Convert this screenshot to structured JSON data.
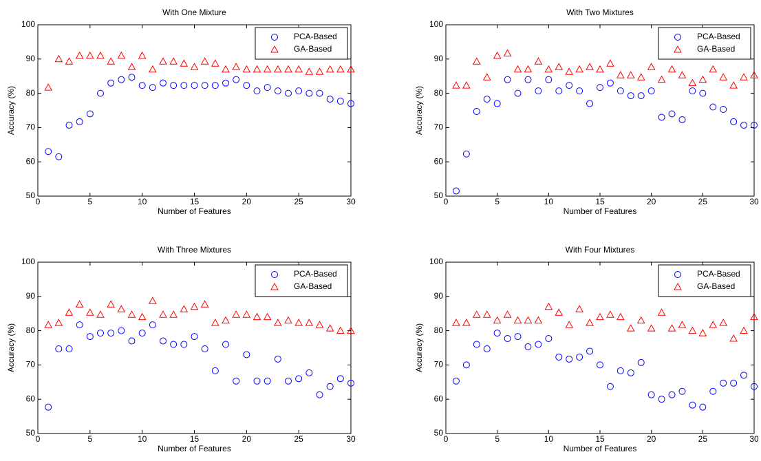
{
  "chart_data": [
    {
      "type": "scatter",
      "title": "With One Mixture",
      "xlabel": "Number of Features",
      "ylabel": "Accuracy (%)",
      "x": [
        1,
        2,
        3,
        4,
        5,
        6,
        7,
        8,
        9,
        10,
        11,
        12,
        13,
        14,
        15,
        16,
        17,
        18,
        19,
        20,
        21,
        22,
        23,
        24,
        25,
        26,
        27,
        28,
        29,
        30
      ],
      "series": [
        {
          "name": "PCA-Based",
          "color": "#0000ff",
          "marker": "o",
          "values": [
            63,
            61.5,
            70.7,
            71.7,
            74,
            80,
            83,
            84,
            84.7,
            82.3,
            81.7,
            83,
            82.3,
            82.3,
            82.3,
            82.3,
            82.3,
            83,
            84,
            82.3,
            80.7,
            81.7,
            80.7,
            80,
            80.7,
            80,
            80,
            78.3,
            77.7,
            77
          ]
        },
        {
          "name": "GA-Based",
          "color": "#ff0000",
          "marker": "^",
          "values": [
            81.7,
            90,
            89.3,
            91,
            91,
            91,
            89.3,
            91,
            87.7,
            91,
            87,
            89.3,
            89.3,
            88.7,
            87.7,
            89.3,
            88.7,
            87,
            87.7,
            87,
            87,
            87,
            87,
            87,
            87,
            86.3,
            86.3,
            87,
            87,
            87
          ]
        }
      ],
      "xlim": [
        0,
        30
      ],
      "ylim": [
        50,
        100
      ],
      "xticks": [
        0,
        5,
        10,
        15,
        20,
        25,
        30
      ],
      "yticks": [
        50,
        60,
        70,
        80,
        90,
        100
      ],
      "legend": "upper right"
    },
    {
      "type": "scatter",
      "title": "With Two Mixtures",
      "xlabel": "Number of Features",
      "ylabel": "Accuracy (%)",
      "x": [
        1,
        2,
        3,
        4,
        5,
        6,
        7,
        8,
        9,
        10,
        11,
        12,
        13,
        14,
        15,
        16,
        17,
        18,
        19,
        20,
        21,
        22,
        23,
        24,
        25,
        26,
        27,
        28,
        29,
        30
      ],
      "series": [
        {
          "name": "PCA-Based",
          "color": "#0000ff",
          "marker": "o",
          "values": [
            51.5,
            62.3,
            74.7,
            78.3,
            77,
            84,
            80,
            84,
            80.7,
            84,
            80.7,
            82.3,
            80.7,
            77,
            81.7,
            83,
            80.7,
            79.3,
            79.3,
            80.7,
            73,
            74,
            72.3,
            80.7,
            80,
            76,
            75.3,
            71.7,
            70.7,
            70.7
          ]
        },
        {
          "name": "GA-Based",
          "color": "#ff0000",
          "marker": "^",
          "values": [
            82.3,
            82.3,
            89.3,
            84.7,
            91,
            91.7,
            87,
            87,
            89.3,
            87,
            87.7,
            86.3,
            87,
            87.7,
            87,
            88.7,
            85.3,
            85.3,
            84.7,
            87.7,
            84,
            87,
            85.3,
            83,
            84,
            87,
            84.7,
            82.3,
            84.7,
            85.3
          ]
        }
      ],
      "xlim": [
        0,
        30
      ],
      "ylim": [
        50,
        100
      ],
      "xticks": [
        0,
        5,
        10,
        15,
        20,
        25,
        30
      ],
      "yticks": [
        50,
        60,
        70,
        80,
        90,
        100
      ],
      "legend": "upper right"
    },
    {
      "type": "scatter",
      "title": "With Three Mixtures",
      "xlabel": "Number of Features",
      "ylabel": "Accuracy (%)",
      "x": [
        1,
        2,
        3,
        4,
        5,
        6,
        7,
        8,
        9,
        10,
        11,
        12,
        13,
        14,
        15,
        16,
        17,
        18,
        19,
        20,
        21,
        22,
        23,
        24,
        25,
        26,
        27,
        28,
        29,
        30
      ],
      "series": [
        {
          "name": "PCA-Based",
          "color": "#0000ff",
          "marker": "o",
          "values": [
            57.7,
            74.7,
            74.7,
            81.7,
            78.3,
            79.3,
            79.3,
            80,
            77,
            79.3,
            81.7,
            77,
            76,
            76,
            78.3,
            74.7,
            68.3,
            76,
            65.3,
            73,
            65.3,
            65.3,
            71.7,
            65.3,
            66,
            67.7,
            61.3,
            63.7,
            66,
            64.7
          ]
        },
        {
          "name": "GA-Based",
          "color": "#ff0000",
          "marker": "^",
          "values": [
            81.7,
            82.3,
            85.3,
            87.7,
            85.3,
            84.7,
            87.7,
            86.3,
            84.7,
            84,
            88.7,
            84.7,
            84.7,
            86.3,
            87,
            87.7,
            82.3,
            83,
            84.7,
            84.7,
            84,
            84,
            82.3,
            83,
            82.3,
            82.3,
            81.7,
            80.7,
            80,
            80
          ]
        }
      ],
      "xlim": [
        0,
        30
      ],
      "ylim": [
        50,
        100
      ],
      "xticks": [
        0,
        5,
        10,
        15,
        20,
        25,
        30
      ],
      "yticks": [
        50,
        60,
        70,
        80,
        90,
        100
      ],
      "legend": "upper right"
    },
    {
      "type": "scatter",
      "title": "With Four Mixtures",
      "xlabel": "Number of Features",
      "ylabel": "Accuracy (%)",
      "x": [
        1,
        2,
        3,
        4,
        5,
        6,
        7,
        8,
        9,
        10,
        11,
        12,
        13,
        14,
        15,
        16,
        17,
        18,
        19,
        20,
        21,
        22,
        23,
        24,
        25,
        26,
        27,
        28,
        29,
        30
      ],
      "series": [
        {
          "name": "PCA-Based",
          "color": "#0000ff",
          "marker": "o",
          "values": [
            65.3,
            70,
            76,
            74.7,
            79.3,
            77.7,
            78.3,
            75.3,
            76,
            77.7,
            72.3,
            71.7,
            72.3,
            74,
            70,
            63.7,
            68.3,
            67.7,
            70.7,
            61.3,
            60,
            61.3,
            62.3,
            58.3,
            57.7,
            62.3,
            64.7,
            64.7,
            67,
            63.7
          ]
        },
        {
          "name": "GA-Based",
          "color": "#ff0000",
          "marker": "^",
          "values": [
            82.3,
            82.3,
            84.7,
            84.7,
            83,
            84.7,
            83,
            83,
            83,
            87,
            85.3,
            81.7,
            86.3,
            82.3,
            84,
            84.7,
            84,
            80.7,
            83,
            80.7,
            85.3,
            80.7,
            81.7,
            80,
            79.3,
            81.7,
            82.3,
            77.7,
            80,
            84
          ]
        }
      ],
      "xlim": [
        0,
        30
      ],
      "ylim": [
        50,
        100
      ],
      "xticks": [
        0,
        5,
        10,
        15,
        20,
        25,
        30
      ],
      "yticks": [
        50,
        60,
        70,
        80,
        90,
        100
      ],
      "legend": "upper right"
    }
  ]
}
